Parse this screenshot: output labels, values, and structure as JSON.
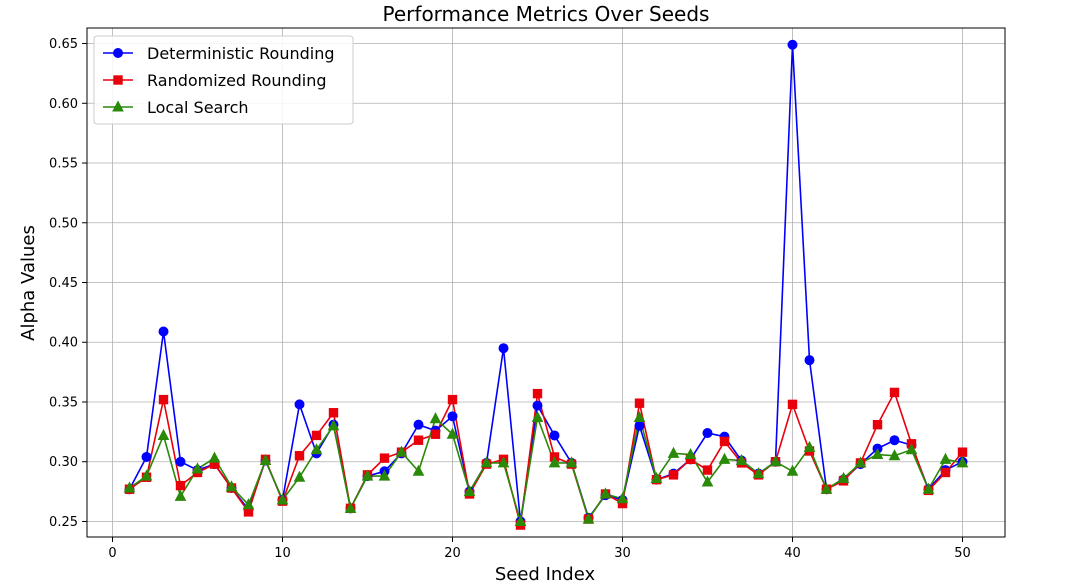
{
  "chart_data": {
    "type": "line",
    "title": "Performance Metrics Over Seeds",
    "xlabel": "Seed Index",
    "ylabel": "Alpha Values",
    "xlim": [
      -1.5,
      52.5
    ],
    "ylim": [
      0.237,
      0.663
    ],
    "xticks": [
      "0",
      "10",
      "20",
      "30",
      "40",
      "50"
    ],
    "xtick_values": [
      0,
      10,
      20,
      30,
      40,
      50
    ],
    "yticks": [
      "0.25",
      "0.30",
      "0.35",
      "0.40",
      "0.45",
      "0.50",
      "0.55",
      "0.60",
      "0.65"
    ],
    "ytick_values": [
      0.25,
      0.3,
      0.35,
      0.4,
      0.45,
      0.5,
      0.55,
      0.6,
      0.65
    ],
    "grid": true,
    "legend_position": "top-left",
    "x": [
      1,
      2,
      3,
      4,
      5,
      6,
      7,
      8,
      9,
      10,
      11,
      12,
      13,
      14,
      15,
      16,
      17,
      18,
      19,
      20,
      21,
      22,
      23,
      24,
      25,
      26,
      27,
      28,
      29,
      30,
      31,
      32,
      33,
      34,
      35,
      36,
      37,
      38,
      39,
      40,
      41,
      42,
      43,
      44,
      45,
      46,
      47,
      48,
      49,
      50
    ],
    "series": [
      {
        "name": "Deterministic Rounding",
        "color": "#0000ff",
        "marker": "circle",
        "values": [
          0.277,
          0.304,
          0.409,
          0.3,
          0.293,
          0.298,
          0.278,
          0.26,
          0.301,
          0.268,
          0.348,
          0.307,
          0.331,
          0.261,
          0.288,
          0.292,
          0.307,
          0.331,
          0.326,
          0.338,
          0.275,
          0.299,
          0.395,
          0.25,
          0.347,
          0.322,
          0.299,
          0.253,
          0.272,
          0.268,
          0.33,
          0.285,
          0.29,
          0.302,
          0.324,
          0.321,
          0.301,
          0.29,
          0.3,
          0.649,
          0.385,
          0.277,
          0.285,
          0.298,
          0.311,
          0.318,
          0.314,
          0.277,
          0.293,
          0.3
        ]
      },
      {
        "name": "Randomized Rounding",
        "color": "#e8000b",
        "marker": "square",
        "values": [
          0.277,
          0.287,
          0.352,
          0.28,
          0.291,
          0.298,
          0.278,
          0.258,
          0.302,
          0.267,
          0.305,
          0.322,
          0.341,
          0.261,
          0.289,
          0.303,
          0.308,
          0.318,
          0.323,
          0.352,
          0.273,
          0.298,
          0.302,
          0.247,
          0.357,
          0.304,
          0.298,
          0.252,
          0.273,
          0.265,
          0.349,
          0.285,
          0.289,
          0.302,
          0.293,
          0.317,
          0.299,
          0.289,
          0.3,
          0.348,
          0.309,
          0.277,
          0.284,
          0.299,
          0.331,
          0.358,
          0.315,
          0.276,
          0.291,
          0.308
        ]
      },
      {
        "name": "Local Search",
        "color": "#2a8a08",
        "marker": "triangle",
        "values": [
          0.278,
          0.288,
          0.322,
          0.271,
          0.294,
          0.303,
          0.279,
          0.264,
          0.301,
          0.268,
          0.287,
          0.31,
          0.33,
          0.261,
          0.288,
          0.288,
          0.308,
          0.292,
          0.336,
          0.323,
          0.275,
          0.299,
          0.299,
          0.25,
          0.337,
          0.299,
          0.299,
          0.252,
          0.273,
          0.269,
          0.337,
          0.286,
          0.307,
          0.306,
          0.283,
          0.302,
          0.301,
          0.29,
          0.3,
          0.292,
          0.312,
          0.277,
          0.286,
          0.299,
          0.306,
          0.305,
          0.31,
          0.277,
          0.302,
          0.299
        ]
      }
    ]
  }
}
